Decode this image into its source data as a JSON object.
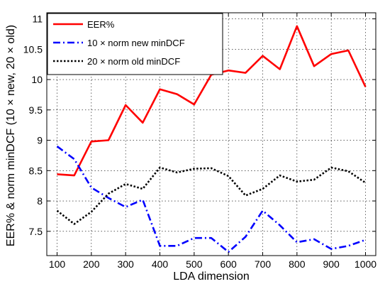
{
  "chart_data": {
    "type": "line",
    "title": "",
    "xlabel": "LDA dimension",
    "ylabel": "EER% & norm minDCF (10 × new, 20 × old)",
    "xlim": [
      70,
      1030
    ],
    "ylim": [
      7.1,
      11.1
    ],
    "xticks": [
      100,
      200,
      300,
      400,
      500,
      600,
      700,
      800,
      900,
      1000
    ],
    "yticks": [
      7.5,
      8,
      8.5,
      9,
      9.5,
      10,
      10.5,
      11
    ],
    "grid": true,
    "legend_position": "top-left",
    "x": [
      100,
      150,
      200,
      250,
      300,
      350,
      400,
      450,
      500,
      550,
      600,
      650,
      700,
      750,
      800,
      850,
      900,
      950,
      1000
    ],
    "series": [
      {
        "name": "EER%",
        "color": "#ff0000",
        "style": "solid",
        "values": [
          8.44,
          8.42,
          8.98,
          9.0,
          9.58,
          9.29,
          9.84,
          9.76,
          9.59,
          10.08,
          10.15,
          10.11,
          10.39,
          10.17,
          10.88,
          10.22,
          10.42,
          10.48,
          9.88
        ]
      },
      {
        "name": "10 × norm new minDCF",
        "color": "#0000ff",
        "style": "dashdot",
        "values": [
          8.9,
          8.69,
          8.22,
          8.05,
          7.9,
          8.02,
          7.26,
          7.26,
          7.39,
          7.39,
          7.16,
          7.41,
          7.84,
          7.6,
          7.32,
          7.37,
          7.21,
          7.26,
          7.36
        ]
      },
      {
        "name": "20 × norm old minDCF",
        "color": "#000000",
        "style": "dotted",
        "values": [
          7.84,
          7.62,
          7.82,
          8.12,
          8.28,
          8.2,
          8.55,
          8.47,
          8.53,
          8.54,
          8.41,
          8.09,
          8.2,
          8.42,
          8.32,
          8.35,
          8.55,
          8.49,
          8.3
        ]
      }
    ]
  }
}
